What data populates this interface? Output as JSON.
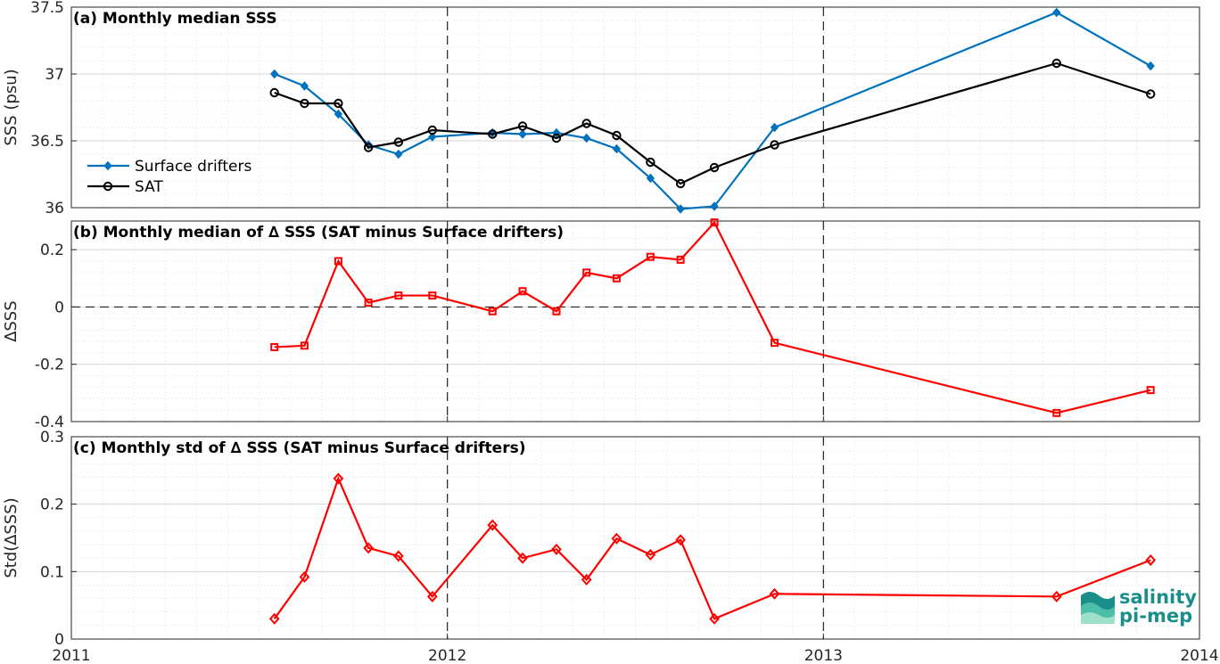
{
  "chart_data": [
    {
      "type": "line",
      "title": "(a) Monthly median SSS",
      "ylabel": "SSS (psu)",
      "xlim": [
        2011,
        2014
      ],
      "ylim": [
        36,
        37.5
      ],
      "yticks": [
        36,
        36.5,
        37,
        37.5
      ],
      "ytick_labels": [
        "36",
        "36.5",
        "37",
        "37.5"
      ],
      "grid": true,
      "legend_position": "middle-left",
      "series": [
        {
          "name": "Surface drifters",
          "color": "#0072bd",
          "marker": "diamond",
          "x": [
            2011.54,
            2011.62,
            2011.71,
            2011.79,
            2011.87,
            2011.96,
            2012.12,
            2012.2,
            2012.29,
            2012.37,
            2012.45,
            2012.54,
            2012.62,
            2012.71,
            2012.87,
            2013.62,
            2013.87
          ],
          "y": [
            37.0,
            36.91,
            36.7,
            36.47,
            36.4,
            36.53,
            36.56,
            36.55,
            36.56,
            36.52,
            36.44,
            36.22,
            35.99,
            36.01,
            36.6,
            37.46,
            37.06
          ]
        },
        {
          "name": "SAT",
          "color": "#000000",
          "marker": "circle",
          "x": [
            2011.54,
            2011.62,
            2011.71,
            2011.79,
            2011.87,
            2011.96,
            2012.12,
            2012.2,
            2012.29,
            2012.37,
            2012.45,
            2012.54,
            2012.62,
            2012.71,
            2012.87,
            2013.62,
            2013.87
          ],
          "y": [
            36.86,
            36.78,
            36.78,
            36.45,
            36.49,
            36.58,
            36.55,
            36.61,
            36.52,
            36.63,
            36.54,
            36.34,
            36.18,
            36.3,
            36.47,
            37.08,
            36.85
          ]
        }
      ]
    },
    {
      "type": "line",
      "title": "(b) Monthly median of ∆ SSS (SAT minus Surface drifters)",
      "ylabel": "∆SSS",
      "xlim": [
        2011,
        2014
      ],
      "ylim": [
        -0.4,
        0.3
      ],
      "yticks": [
        -0.4,
        -0.2,
        0,
        0.2
      ],
      "ytick_labels": [
        "-0.4",
        "-0.2",
        "0",
        "0.2"
      ],
      "grid": true,
      "zero_line": true,
      "series": [
        {
          "color": "#ff0000",
          "marker": "square",
          "x": [
            2011.54,
            2011.62,
            2011.71,
            2011.79,
            2011.87,
            2011.96,
            2012.12,
            2012.2,
            2012.29,
            2012.37,
            2012.45,
            2012.54,
            2012.62,
            2012.71,
            2012.87,
            2013.62,
            2013.87
          ],
          "y": [
            -0.14,
            -0.135,
            0.16,
            0.015,
            0.04,
            0.04,
            -0.015,
            0.055,
            -0.015,
            0.12,
            0.1,
            0.175,
            0.165,
            0.295,
            -0.125,
            -0.37,
            -0.29
          ]
        }
      ]
    },
    {
      "type": "line",
      "title": "(c) Monthly std of ∆ SSS (SAT minus Surface drifters)",
      "ylabel": "Std(∆SSS)",
      "xlim": [
        2011,
        2014
      ],
      "ylim": [
        0,
        0.3
      ],
      "yticks": [
        0,
        0.1,
        0.2,
        0.3
      ],
      "ytick_labels": [
        "0",
        "0.1",
        "0.2",
        "0.3"
      ],
      "xticks": [
        2011,
        2012,
        2013,
        2014
      ],
      "xtick_labels": [
        "2011",
        "2012",
        "2013",
        "2014"
      ],
      "grid": true,
      "series": [
        {
          "color": "#ff0000",
          "marker": "diamond-open",
          "x": [
            2011.54,
            2011.62,
            2011.71,
            2011.79,
            2011.87,
            2011.96,
            2012.12,
            2012.2,
            2012.29,
            2012.37,
            2012.45,
            2012.54,
            2012.62,
            2012.71,
            2012.87,
            2013.62,
            2013.87
          ],
          "y": [
            0.03,
            0.092,
            0.238,
            0.135,
            0.123,
            0.063,
            0.169,
            0.12,
            0.133,
            0.088,
            0.149,
            0.125,
            0.147,
            0.03,
            0.067,
            0.063,
            0.117
          ]
        }
      ]
    }
  ],
  "logo": {
    "line1": "salinity",
    "line2": "pi-mep"
  }
}
